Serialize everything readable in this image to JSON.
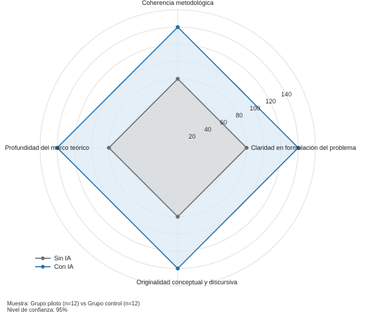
{
  "chart_data": {
    "type": "radar",
    "title": "",
    "axes": [
      "Coherencia metodológica",
      "Claridad en formulación del problema",
      "Originalidad conceptual y discursiva",
      "Profundidad del marco teórico"
    ],
    "rlim": [
      0,
      160
    ],
    "radial_ticks": [
      20,
      40,
      60,
      80,
      100,
      120,
      140
    ],
    "grid": true,
    "legend_position": "lower-left",
    "series": [
      {
        "name": "Sin IA",
        "values": [
          80,
          80,
          80,
          80
        ],
        "color": "#6e6e6e",
        "fill": "#d7d9db"
      },
      {
        "name": "Con IA",
        "values": [
          140,
          140,
          140,
          140
        ],
        "color": "#1f6fad",
        "fill": "#dce9f4"
      }
    ]
  },
  "footer": {
    "line1": "Muestra: Grupo piloto (n=12) vs Grupo control (n=12)",
    "line2": "Nivel de confianza: 95%"
  }
}
